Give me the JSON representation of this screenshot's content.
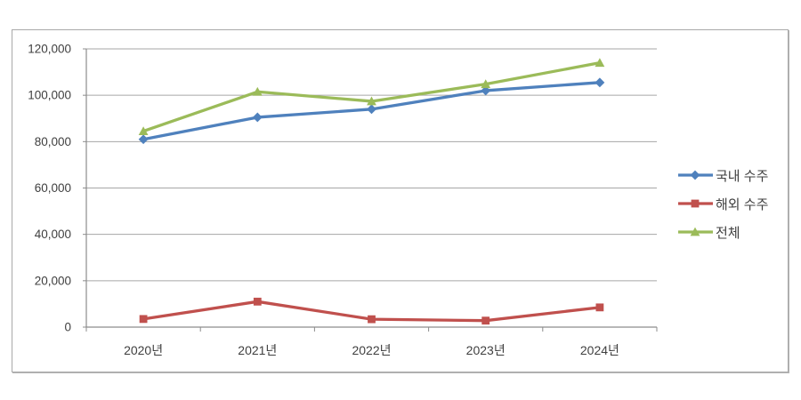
{
  "chart_data": {
    "type": "line",
    "title": "",
    "xlabel": "",
    "ylabel": "",
    "categories": [
      "2020년",
      "2021년",
      "2022년",
      "2023년",
      "2024년"
    ],
    "series": [
      {
        "name": "국내 수주",
        "color": "#4F81BD",
        "marker": "diamond",
        "values": [
          81000,
          90500,
          94000,
          102000,
          105500
        ]
      },
      {
        "name": "해외 수주",
        "color": "#C0504D",
        "marker": "square",
        "values": [
          3500,
          11000,
          3400,
          2800,
          8500
        ]
      },
      {
        "name": "전체",
        "color": "#9BBB59",
        "marker": "triangle",
        "values": [
          84500,
          101500,
          97400,
          104800,
          114000
        ]
      }
    ],
    "ylim": [
      0,
      120000
    ],
    "ytick_step": 20000,
    "ytick_labels": [
      "0",
      "20,000",
      "40,000",
      "60,000",
      "80,000",
      "100,000",
      "120,000"
    ],
    "grid": true,
    "legend_position": "right",
    "colors": {
      "gridline": "#A6A6A6",
      "axis": "#8C8C8C",
      "tick": "#8C8C8C",
      "text": "#3F3F3F",
      "background": "#FFFFFF",
      "frame_border": "#A9A9A9"
    }
  }
}
